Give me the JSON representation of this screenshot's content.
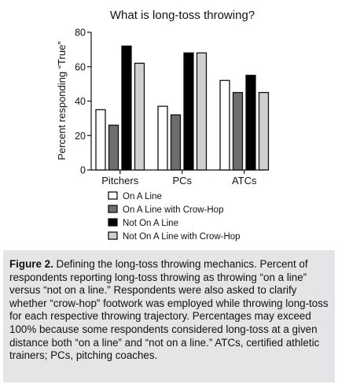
{
  "chart_data": {
    "type": "bar",
    "title": "What is long-toss throwing?",
    "xlabel": "",
    "ylabel": "Percent responding “True”",
    "ylim": [
      0,
      80
    ],
    "yticks": [
      0,
      20,
      40,
      60,
      80
    ],
    "categories": [
      "Pitchers",
      "PCs",
      "ATCs"
    ],
    "series": [
      {
        "name": "On A Line",
        "color": "#ffffff",
        "values": [
          35,
          37,
          52
        ]
      },
      {
        "name": "On A Line with Crow-Hop",
        "color": "#6e6e6e",
        "values": [
          26,
          32,
          45
        ]
      },
      {
        "name": "Not On A Line",
        "color": "#000000",
        "values": [
          72,
          68,
          55
        ]
      },
      {
        "name": "Not On A Line with Crow-Hop",
        "color": "#d0d0d0",
        "values": [
          62,
          68,
          45
        ]
      }
    ],
    "legend_position": "bottom",
    "grid": false
  },
  "caption": {
    "label": "Figure 2.",
    "text": " Defining the long-toss throwing mechanics. Percent of respondents reporting long-toss throwing as throwing “on a line” versus “not on a line.” Respondents were also asked to clarify whether “crow-hop” footwork was employed while throwing long-toss for each respective throwing trajectory. Percentages may exceed 100% because some respondents considered long-toss at a given distance both “on a line” and “not on a line.” ATCs, certified athletic trainers; PCs, pitching coaches."
  }
}
